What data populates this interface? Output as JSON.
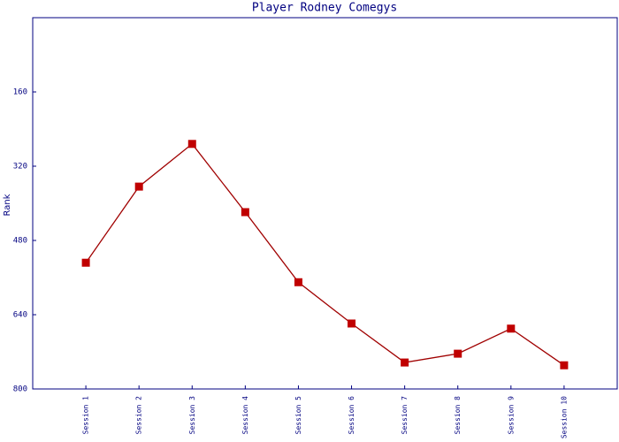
{
  "chart_data": {
    "type": "line",
    "title": "Player Rodney Comegys",
    "y_label": "Rank",
    "categories": [
      "Session 1",
      "Session 2",
      "Session 3",
      "Session 4",
      "Session 5",
      "Session 6",
      "Session 7",
      "Session 8",
      "Session 9",
      "Session 10"
    ],
    "values": [
      528,
      364,
      272,
      419,
      570,
      659,
      743,
      724,
      670,
      749
    ],
    "color": "#a00000",
    "marker_color": "#c00000",
    "ylim": [
      0,
      800
    ],
    "y_inverted": true,
    "yticks": [
      160,
      320,
      480,
      640,
      800
    ],
    "grid": false
  }
}
